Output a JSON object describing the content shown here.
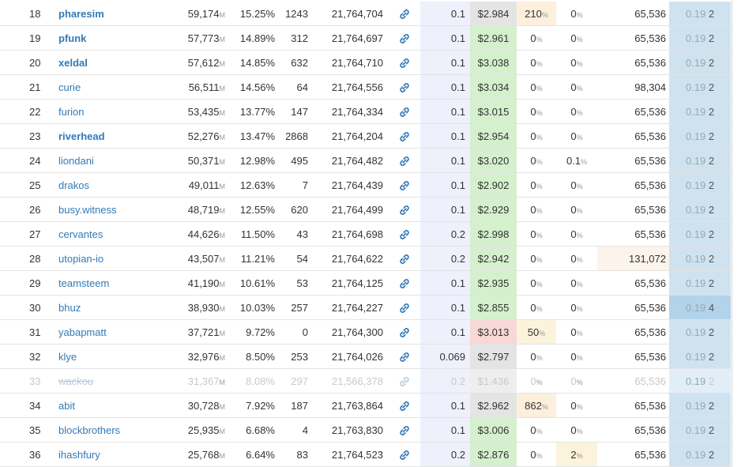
{
  "rows": [
    {
      "rank": "18",
      "name": "pharesim",
      "bold": true,
      "votes": "59,174",
      "votes_unit": "M",
      "share": "15.25%",
      "missed": "1243",
      "block": "21,764,704",
      "ratio": "0.1",
      "price": "$2.984",
      "pbg": "#e4e4e4",
      "pct1": "210",
      "pct1_unit": "%",
      "pct1bg": "#fcefdc",
      "pct2": "0",
      "pct2_unit": "%",
      "pct2bg": "#ffffff",
      "size": "65,536",
      "sizebg": "#ffffff",
      "ver_main": "0.19",
      "ver_sub": "2",
      "verbg": "#cfe2f0",
      "inactive": false
    },
    {
      "rank": "19",
      "name": "pfunk",
      "bold": true,
      "votes": "57,773",
      "votes_unit": "M",
      "share": "14.89%",
      "missed": "312",
      "block": "21,764,697",
      "ratio": "0.1",
      "price": "$2.961",
      "pbg": "#d4f0cd",
      "pct1": "0",
      "pct1_unit": "%",
      "pct1bg": "#ffffff",
      "pct2": "0",
      "pct2_unit": "%",
      "pct2bg": "#ffffff",
      "size": "65,536",
      "sizebg": "#ffffff",
      "ver_main": "0.19",
      "ver_sub": "2",
      "verbg": "#cfe2f0",
      "inactive": false
    },
    {
      "rank": "20",
      "name": "xeldal",
      "bold": true,
      "votes": "57,612",
      "votes_unit": "M",
      "share": "14.85%",
      "missed": "632",
      "block": "21,764,710",
      "ratio": "0.1",
      "price": "$3.038",
      "pbg": "#d4f0cd",
      "pct1": "0",
      "pct1_unit": "%",
      "pct1bg": "#ffffff",
      "pct2": "0",
      "pct2_unit": "%",
      "pct2bg": "#ffffff",
      "size": "65,536",
      "sizebg": "#ffffff",
      "ver_main": "0.19",
      "ver_sub": "2",
      "verbg": "#cfe2f0",
      "inactive": false
    },
    {
      "rank": "21",
      "name": "curie",
      "bold": false,
      "votes": "56,511",
      "votes_unit": "M",
      "share": "14.56%",
      "missed": "64",
      "block": "21,764,556",
      "ratio": "0.1",
      "price": "$3.034",
      "pbg": "#d4f0cd",
      "pct1": "0",
      "pct1_unit": "%",
      "pct1bg": "#ffffff",
      "pct2": "0",
      "pct2_unit": "%",
      "pct2bg": "#ffffff",
      "size": "98,304",
      "sizebg": "#ffffff",
      "ver_main": "0.19",
      "ver_sub": "2",
      "verbg": "#cfe2f0",
      "inactive": false
    },
    {
      "rank": "22",
      "name": "furion",
      "bold": false,
      "votes": "53,435",
      "votes_unit": "M",
      "share": "13.77%",
      "missed": "147",
      "block": "21,764,334",
      "ratio": "0.1",
      "price": "$3.015",
      "pbg": "#d4f0cd",
      "pct1": "0",
      "pct1_unit": "%",
      "pct1bg": "#ffffff",
      "pct2": "0",
      "pct2_unit": "%",
      "pct2bg": "#ffffff",
      "size": "65,536",
      "sizebg": "#ffffff",
      "ver_main": "0.19",
      "ver_sub": "2",
      "verbg": "#cfe2f0",
      "inactive": false
    },
    {
      "rank": "23",
      "name": "riverhead",
      "bold": true,
      "votes": "52,276",
      "votes_unit": "M",
      "share": "13.47%",
      "missed": "2868",
      "block": "21,764,204",
      "ratio": "0.1",
      "price": "$2.954",
      "pbg": "#d4f0cd",
      "pct1": "0",
      "pct1_unit": "%",
      "pct1bg": "#ffffff",
      "pct2": "0",
      "pct2_unit": "%",
      "pct2bg": "#ffffff",
      "size": "65,536",
      "sizebg": "#ffffff",
      "ver_main": "0.19",
      "ver_sub": "2",
      "verbg": "#cfe2f0",
      "inactive": false
    },
    {
      "rank": "24",
      "name": "liondani",
      "bold": false,
      "votes": "50,371",
      "votes_unit": "M",
      "share": "12.98%",
      "missed": "495",
      "block": "21,764,482",
      "ratio": "0.1",
      "price": "$3.020",
      "pbg": "#d4f0cd",
      "pct1": "0",
      "pct1_unit": "%",
      "pct1bg": "#ffffff",
      "pct2": "0.1",
      "pct2_unit": "%",
      "pct2bg": "#ffffff",
      "size": "65,536",
      "sizebg": "#ffffff",
      "ver_main": "0.19",
      "ver_sub": "2",
      "verbg": "#cfe2f0",
      "inactive": false
    },
    {
      "rank": "25",
      "name": "drakos",
      "bold": false,
      "votes": "49,011",
      "votes_unit": "M",
      "share": "12.63%",
      "missed": "7",
      "block": "21,764,439",
      "ratio": "0.1",
      "price": "$2.902",
      "pbg": "#d4f0cd",
      "pct1": "0",
      "pct1_unit": "%",
      "pct1bg": "#ffffff",
      "pct2": "0",
      "pct2_unit": "%",
      "pct2bg": "#ffffff",
      "size": "65,536",
      "sizebg": "#ffffff",
      "ver_main": "0.19",
      "ver_sub": "2",
      "verbg": "#cfe2f0",
      "inactive": false
    },
    {
      "rank": "26",
      "name": "busy.witness",
      "bold": false,
      "votes": "48,719",
      "votes_unit": "M",
      "share": "12.55%",
      "missed": "620",
      "block": "21,764,499",
      "ratio": "0.1",
      "price": "$2.929",
      "pbg": "#d4f0cd",
      "pct1": "0",
      "pct1_unit": "%",
      "pct1bg": "#ffffff",
      "pct2": "0",
      "pct2_unit": "%",
      "pct2bg": "#ffffff",
      "size": "65,536",
      "sizebg": "#ffffff",
      "ver_main": "0.19",
      "ver_sub": "2",
      "verbg": "#cfe2f0",
      "inactive": false
    },
    {
      "rank": "27",
      "name": "cervantes",
      "bold": false,
      "votes": "44,626",
      "votes_unit": "M",
      "share": "11.50%",
      "missed": "43",
      "block": "21,764,698",
      "ratio": "0.2",
      "price": "$2.998",
      "pbg": "#d4f0cd",
      "pct1": "0",
      "pct1_unit": "%",
      "pct1bg": "#ffffff",
      "pct2": "0",
      "pct2_unit": "%",
      "pct2bg": "#ffffff",
      "size": "65,536",
      "sizebg": "#ffffff",
      "ver_main": "0.19",
      "ver_sub": "2",
      "verbg": "#cfe2f0",
      "inactive": false
    },
    {
      "rank": "28",
      "name": "utopian-io",
      "bold": false,
      "votes": "43,507",
      "votes_unit": "M",
      "share": "11.21%",
      "missed": "54",
      "block": "21,764,622",
      "ratio": "0.2",
      "price": "$2.942",
      "pbg": "#d4f0cd",
      "pct1": "0",
      "pct1_unit": "%",
      "pct1bg": "#ffffff",
      "pct2": "0",
      "pct2_unit": "%",
      "pct2bg": "#ffffff",
      "size": "131,072",
      "sizebg": "#fcf3ea",
      "ver_main": "0.19",
      "ver_sub": "2",
      "verbg": "#cfe2f0",
      "inactive": false
    },
    {
      "rank": "29",
      "name": "teamsteem",
      "bold": false,
      "votes": "41,190",
      "votes_unit": "M",
      "share": "10.61%",
      "missed": "53",
      "block": "21,764,125",
      "ratio": "0.1",
      "price": "$2.935",
      "pbg": "#d4f0cd",
      "pct1": "0",
      "pct1_unit": "%",
      "pct1bg": "#ffffff",
      "pct2": "0",
      "pct2_unit": "%",
      "pct2bg": "#ffffff",
      "size": "65,536",
      "sizebg": "#ffffff",
      "ver_main": "0.19",
      "ver_sub": "2",
      "verbg": "#cfe2f0",
      "inactive": false
    },
    {
      "rank": "30",
      "name": "bhuz",
      "bold": false,
      "votes": "38,930",
      "votes_unit": "M",
      "share": "10.03%",
      "missed": "257",
      "block": "21,764,227",
      "ratio": "0.1",
      "price": "$2.855",
      "pbg": "#d4f0cd",
      "pct1": "0",
      "pct1_unit": "%",
      "pct1bg": "#ffffff",
      "pct2": "0",
      "pct2_unit": "%",
      "pct2bg": "#ffffff",
      "size": "65,536",
      "sizebg": "#ffffff",
      "ver_main": "0.19",
      "ver_sub": "4",
      "verbg": "#b2d3ea",
      "inactive": false
    },
    {
      "rank": "31",
      "name": "yabapmatt",
      "bold": false,
      "votes": "37,721",
      "votes_unit": "M",
      "share": "9.72%",
      "missed": "0",
      "block": "21,764,300",
      "ratio": "0.1",
      "price": "$3.013",
      "pbg": "#f8d7d7",
      "pct1": "50",
      "pct1_unit": "%",
      "pct1bg": "#fcf3dc",
      "pct2": "0",
      "pct2_unit": "%",
      "pct2bg": "#ffffff",
      "size": "65,536",
      "sizebg": "#ffffff",
      "ver_main": "0.19",
      "ver_sub": "2",
      "verbg": "#cfe2f0",
      "inactive": false
    },
    {
      "rank": "32",
      "name": "klye",
      "bold": false,
      "votes": "32,976",
      "votes_unit": "M",
      "share": "8.50%",
      "missed": "253",
      "block": "21,764,026",
      "ratio": "0.069",
      "price": "$2.797",
      "pbg": "#e4e4e4",
      "pct1": "0",
      "pct1_unit": "%",
      "pct1bg": "#ffffff",
      "pct2": "0",
      "pct2_unit": "%",
      "pct2bg": "#ffffff",
      "size": "65,536",
      "sizebg": "#ffffff",
      "ver_main": "0.19",
      "ver_sub": "2",
      "verbg": "#cfe2f0",
      "inactive": false
    },
    {
      "rank": "33",
      "name": "wackou",
      "bold": false,
      "votes": "31,367",
      "votes_unit": "M",
      "share": "8.08%",
      "missed": "297",
      "block": "21,566,378",
      "ratio": "0.2",
      "price": "$1.436",
      "pbg": "#eeeeee",
      "pct1": "0",
      "pct1_unit": "%",
      "pct1bg": "#ffffff",
      "pct2": "0",
      "pct2_unit": "%",
      "pct2bg": "#ffffff",
      "size": "65,536",
      "sizebg": "#ffffff",
      "ver_main": "0.19",
      "ver_sub": "2",
      "verbg": "#e2eef7",
      "inactive": true
    },
    {
      "rank": "34",
      "name": "abit",
      "bold": false,
      "votes": "30,728",
      "votes_unit": "M",
      "share": "7.92%",
      "missed": "187",
      "block": "21,763,864",
      "ratio": "0.1",
      "price": "$2.962",
      "pbg": "#e4e4e4",
      "pct1": "862",
      "pct1_unit": "%",
      "pct1bg": "#fcefdc",
      "pct2": "0",
      "pct2_unit": "%",
      "pct2bg": "#ffffff",
      "size": "65,536",
      "sizebg": "#ffffff",
      "ver_main": "0.19",
      "ver_sub": "2",
      "verbg": "#cfe2f0",
      "inactive": false
    },
    {
      "rank": "35",
      "name": "blockbrothers",
      "bold": false,
      "votes": "25,935",
      "votes_unit": "M",
      "share": "6.68%",
      "missed": "4",
      "block": "21,763,830",
      "ratio": "0.1",
      "price": "$3.006",
      "pbg": "#d4f0cd",
      "pct1": "0",
      "pct1_unit": "%",
      "pct1bg": "#ffffff",
      "pct2": "0",
      "pct2_unit": "%",
      "pct2bg": "#ffffff",
      "size": "65,536",
      "sizebg": "#ffffff",
      "ver_main": "0.19",
      "ver_sub": "2",
      "verbg": "#cfe2f0",
      "inactive": false
    },
    {
      "rank": "36",
      "name": "ihashfury",
      "bold": false,
      "votes": "25,768",
      "votes_unit": "M",
      "share": "6.64%",
      "missed": "83",
      "block": "21,764,523",
      "ratio": "0.2",
      "price": "$2.876",
      "pbg": "#d4f0cd",
      "pct1": "0",
      "pct1_unit": "%",
      "pct1bg": "#ffffff",
      "pct2": "2",
      "pct2_unit": "%",
      "pct2bg": "#fcf3dc",
      "size": "65,536",
      "sizebg": "#ffffff",
      "ver_main": "0.19",
      "ver_sub": "2",
      "verbg": "#cfe2f0",
      "inactive": false
    }
  ],
  "icons": {
    "link": "link-icon"
  },
  "colors": {
    "link": "#337ab7",
    "ratio_bg": "#eef0fb",
    "version_bg": "#cfe2f0"
  }
}
